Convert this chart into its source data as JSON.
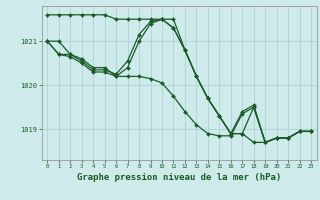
{
  "background_color": "#ceeaea",
  "grid_color": "#a8d0d0",
  "line_color": "#1a5c28",
  "line_width": 0.9,
  "marker": "D",
  "marker_size": 2.0,
  "title": "Graphe pression niveau de la mer (hPa)",
  "title_fontsize": 6.5,
  "xlim": [
    -0.5,
    23.5
  ],
  "ylim": [
    1018.3,
    1021.8
  ],
  "yticks": [
    1019,
    1020,
    1021
  ],
  "xticks": [
    0,
    1,
    2,
    3,
    4,
    5,
    6,
    7,
    8,
    9,
    10,
    11,
    12,
    13,
    14,
    15,
    16,
    17,
    18,
    19,
    20,
    21,
    22,
    23
  ],
  "series": [
    [
      1021.6,
      1021.6,
      1021.6,
      1021.6,
      1021.6,
      1021.6,
      1021.5,
      1021.5,
      1021.5,
      1021.5,
      1021.5,
      1021.5,
      1020.8,
      1020.2,
      1019.7,
      1019.3,
      1018.9,
      1018.9,
      1018.7,
      1018.7,
      1018.8,
      1018.8,
      1018.95,
      1018.95
    ],
    [
      1021.0,
      1021.0,
      1020.7,
      1020.6,
      1020.4,
      1020.4,
      1020.2,
      1020.4,
      1021.0,
      1021.4,
      1021.5,
      1021.3,
      1020.8,
      1020.2,
      1019.7,
      1019.3,
      1018.9,
      1018.9,
      1019.5,
      1018.7,
      1018.8,
      1018.8,
      1018.95,
      1018.95
    ],
    [
      1021.0,
      1020.7,
      1020.7,
      1020.55,
      1020.35,
      1020.35,
      1020.25,
      1020.55,
      1021.15,
      1021.45,
      1021.5,
      1021.3,
      1020.8,
      1020.2,
      1019.7,
      1019.3,
      1018.9,
      1019.4,
      1019.55,
      1018.7,
      1018.8,
      1018.8,
      1018.95,
      1018.95
    ],
    [
      1021.0,
      1020.7,
      1020.65,
      1020.5,
      1020.3,
      1020.3,
      1020.2,
      1020.2,
      1020.2,
      1020.15,
      1020.05,
      1019.75,
      1019.4,
      1019.1,
      1018.9,
      1018.85,
      1018.85,
      1019.35,
      1019.5,
      1018.7,
      1018.8,
      1018.8,
      1018.95,
      1018.95
    ]
  ]
}
